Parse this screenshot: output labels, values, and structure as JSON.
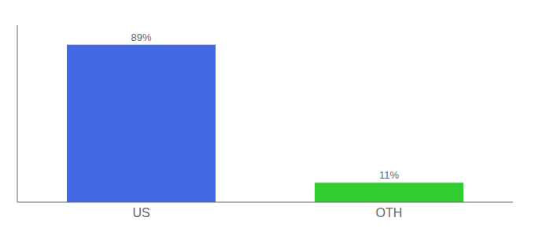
{
  "chart_data": {
    "type": "bar",
    "categories": [
      "US",
      "OTH"
    ],
    "values": [
      89,
      11
    ],
    "value_labels": [
      "89%",
      "11%"
    ],
    "colors": [
      "#4169e1",
      "#33cc33"
    ],
    "ylim": [
      0,
      100
    ],
    "data_labels": true,
    "tick_labels": "x",
    "grid": false
  }
}
